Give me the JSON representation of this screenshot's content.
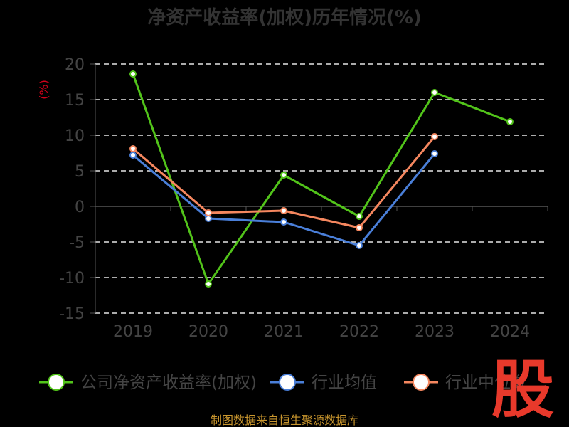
{
  "chart_data": {
    "type": "line",
    "title": "净资产收益率(加权)历年情况(%)",
    "ylabel": "(%)",
    "categories": [
      "2019",
      "2020",
      "2021",
      "2022",
      "2023",
      "2024"
    ],
    "ylim": [
      -15,
      20
    ],
    "yticks": [
      20,
      15,
      10,
      5,
      0,
      -5,
      -10,
      -15
    ],
    "grid": true,
    "legend_position": "bottom",
    "series": [
      {
        "name": "公司净资产收益率(加权)",
        "color": "#52c41a",
        "values": [
          18.6,
          -10.9,
          4.4,
          -1.4,
          16.0,
          11.9
        ]
      },
      {
        "name": "行业均值",
        "color": "#4a7fd9",
        "values": [
          7.2,
          -1.7,
          -2.2,
          -5.5,
          7.4,
          null
        ]
      },
      {
        "name": "行业中位数",
        "color": "#f5875f",
        "values": [
          8.1,
          -0.9,
          -0.6,
          -3.0,
          9.8,
          null
        ]
      }
    ]
  },
  "footer": {
    "source": "制图数据来自恒生聚源数据库"
  },
  "logo": {
    "text": "股"
  }
}
